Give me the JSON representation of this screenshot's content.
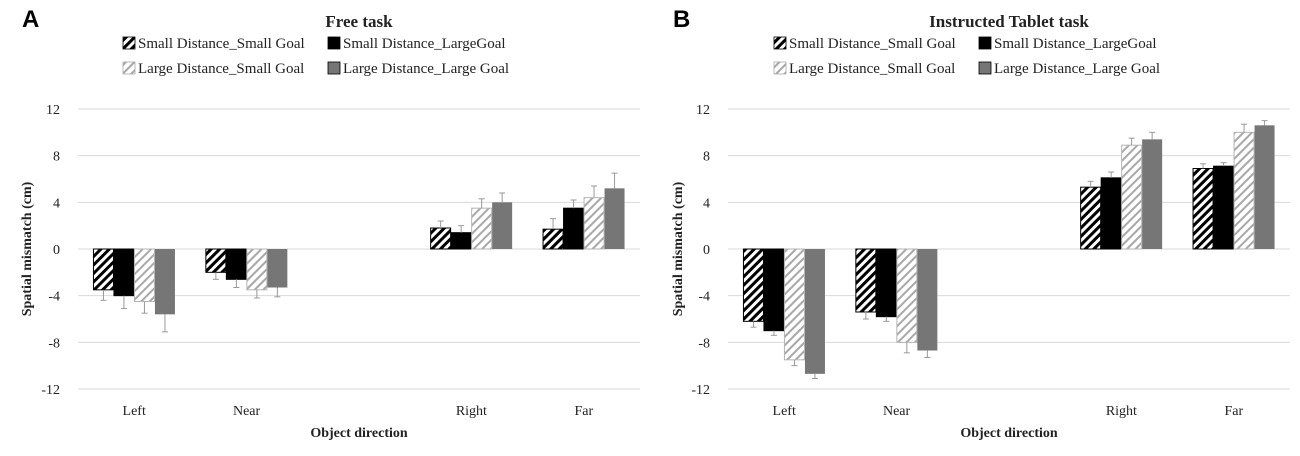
{
  "colors": {
    "small_small": "#000000",
    "small_large": "#000000",
    "large_small": "#a8a8a8",
    "large_large": "#767676",
    "grid": "#d9d9d9",
    "error_bar": "#999999"
  },
  "chart_data": [
    {
      "panel": "A",
      "type": "bar",
      "title": "Free task",
      "xlabel": "Object direction",
      "ylabel": "Spatial mismatch (cm)",
      "ylim": [
        -12,
        12
      ],
      "yticks": [
        12,
        8,
        4,
        0,
        -4,
        -8,
        -12
      ],
      "grid": true,
      "legend_position": "top",
      "categories": [
        "Left",
        "Near",
        "",
        "Right",
        "Far"
      ],
      "series": [
        {
          "name": "Small Distance_Small Goal",
          "pattern": "dense-hatch",
          "values": [
            -3.5,
            -2.0,
            null,
            1.8,
            1.7
          ],
          "errors": [
            0.9,
            0.6,
            null,
            0.6,
            0.9
          ]
        },
        {
          "name": "Small Distance_LargeGoal",
          "pattern": "solid-black",
          "values": [
            -4.0,
            -2.6,
            null,
            1.4,
            3.5
          ],
          "errors": [
            1.1,
            0.7,
            null,
            0.6,
            0.7
          ]
        },
        {
          "name": "Large Distance_Small Goal",
          "pattern": "light-hatch",
          "values": [
            -4.5,
            -3.5,
            null,
            3.5,
            4.4
          ],
          "errors": [
            1.0,
            0.7,
            null,
            0.8,
            1.0
          ]
        },
        {
          "name": "Large Distance_Large Goal",
          "pattern": "solid-gray",
          "values": [
            -5.6,
            -3.3,
            null,
            4.0,
            5.2
          ],
          "errors": [
            1.5,
            0.8,
            null,
            0.8,
            1.3
          ]
        }
      ]
    },
    {
      "panel": "B",
      "type": "bar",
      "title": "Instructed Tablet task",
      "xlabel": "Object direction",
      "ylabel": "Spatial mismatch (cm)",
      "ylim": [
        -12,
        12
      ],
      "yticks": [
        12,
        8,
        4,
        0,
        -4,
        -8,
        -12
      ],
      "grid": true,
      "legend_position": "top",
      "categories": [
        "Left",
        "Near",
        "",
        "Right",
        "Far"
      ],
      "series": [
        {
          "name": "Small Distance_Small Goal",
          "pattern": "dense-hatch",
          "values": [
            -6.2,
            -5.4,
            null,
            5.3,
            6.9
          ],
          "errors": [
            0.5,
            0.6,
            null,
            0.5,
            0.4
          ]
        },
        {
          "name": "Small Distance_LargeGoal",
          "pattern": "solid-black",
          "values": [
            -7.0,
            -5.8,
            null,
            6.1,
            7.1
          ],
          "errors": [
            0.4,
            0.4,
            null,
            0.5,
            0.3
          ]
        },
        {
          "name": "Large Distance_Small Goal",
          "pattern": "light-hatch",
          "values": [
            -9.5,
            -8.0,
            null,
            8.9,
            10.0
          ],
          "errors": [
            0.5,
            0.9,
            null,
            0.6,
            0.7
          ]
        },
        {
          "name": "Large Distance_Large Goal",
          "pattern": "solid-gray",
          "values": [
            -10.7,
            -8.7,
            null,
            9.4,
            10.6
          ],
          "errors": [
            0.4,
            0.6,
            null,
            0.6,
            0.4
          ]
        }
      ]
    }
  ]
}
